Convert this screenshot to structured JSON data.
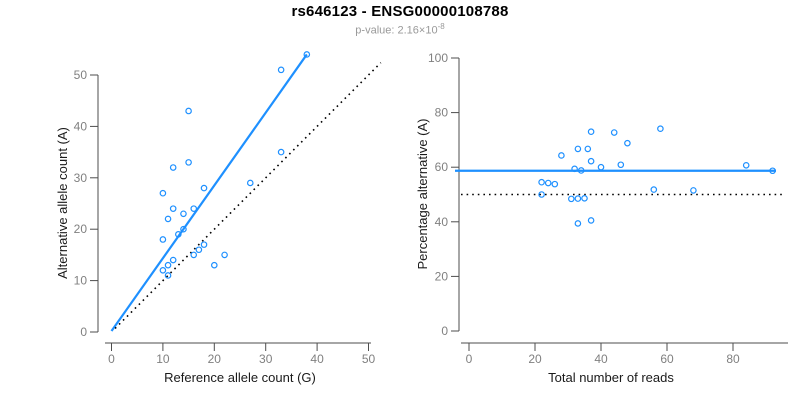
{
  "header": {
    "title": "rs646123 - ENSG00000108788",
    "pvalue_text": "p-value: 2.16×10",
    "pvalue_exponent": "-8"
  },
  "colors": {
    "accent_blue": "#1E90FF",
    "dotted_line": "#000000",
    "axis_line": "#4d4d4d",
    "tick_label": "#808080",
    "axis_title": "#1a1a1a",
    "subtitle_gray": "#999999",
    "background": "#ffffff"
  },
  "chart_data": [
    {
      "type": "scatter",
      "name": "allele-counts-panel",
      "xlabel": "Reference allele count (G)",
      "ylabel": "Alternative allele count (A)",
      "xlim": [
        0,
        50
      ],
      "ylim": [
        0,
        50
      ],
      "xticks": [
        0,
        10,
        20,
        30,
        40,
        50
      ],
      "yticks": [
        0,
        10,
        20,
        30,
        40,
        50
      ],
      "grid": false,
      "legend": "none",
      "points": [
        [
          10,
          12
        ],
        [
          11,
          13
        ],
        [
          12,
          14
        ],
        [
          11,
          11
        ],
        [
          10,
          18
        ],
        [
          16,
          15
        ],
        [
          17,
          16
        ],
        [
          18,
          17
        ],
        [
          13,
          19
        ],
        [
          14,
          20
        ],
        [
          11,
          22
        ],
        [
          12,
          24
        ],
        [
          10,
          27
        ],
        [
          14,
          23
        ],
        [
          16,
          24
        ],
        [
          12,
          32
        ],
        [
          18,
          28
        ],
        [
          15,
          33
        ],
        [
          20,
          13
        ],
        [
          22,
          15
        ],
        [
          27,
          29
        ],
        [
          15,
          43
        ],
        [
          33,
          35
        ],
        [
          33,
          51
        ],
        [
          38,
          54
        ]
      ],
      "lines": [
        {
          "name": "fit-line",
          "style": "solid",
          "color": "#1E90FF",
          "from": [
            0,
            0.2
          ],
          "to": [
            38,
            54
          ]
        },
        {
          "name": "identity-line",
          "style": "dotted",
          "color": "#000000",
          "from": [
            0.7,
            0.7
          ],
          "to": [
            52.4,
            52.4
          ]
        }
      ]
    },
    {
      "type": "scatter",
      "name": "percentage-panel",
      "xlabel": "Total number of reads",
      "ylabel": "Percentage alternative (A)",
      "xlim": [
        0,
        95
      ],
      "ylim": [
        0,
        100
      ],
      "xticks": [
        0,
        20,
        40,
        60,
        80
      ],
      "yticks": [
        0,
        20,
        40,
        60,
        80,
        100
      ],
      "grid": false,
      "legend": "none",
      "points": [
        [
          22,
          54.5
        ],
        [
          24,
          54.2
        ],
        [
          26,
          53.8
        ],
        [
          22,
          50.0
        ],
        [
          28,
          64.3
        ],
        [
          31,
          48.4
        ],
        [
          33,
          48.5
        ],
        [
          35,
          48.6
        ],
        [
          32,
          59.4
        ],
        [
          34,
          58.8
        ],
        [
          33,
          66.7
        ],
        [
          36,
          66.7
        ],
        [
          37,
          73.0
        ],
        [
          37,
          62.2
        ],
        [
          40,
          60.0
        ],
        [
          44,
          72.7
        ],
        [
          46,
          60.9
        ],
        [
          48,
          68.8
        ],
        [
          33,
          39.4
        ],
        [
          37,
          40.5
        ],
        [
          56,
          51.8
        ],
        [
          58,
          74.1
        ],
        [
          68,
          51.5
        ],
        [
          84,
          60.7
        ],
        [
          92,
          58.7
        ]
      ],
      "lines": [
        {
          "name": "mean-percentage-line",
          "style": "solid",
          "color": "#1E90FF",
          "y": 58.7
        },
        {
          "name": "fifty-percent-line",
          "style": "dotted",
          "color": "#000000",
          "y": 50
        }
      ]
    }
  ]
}
